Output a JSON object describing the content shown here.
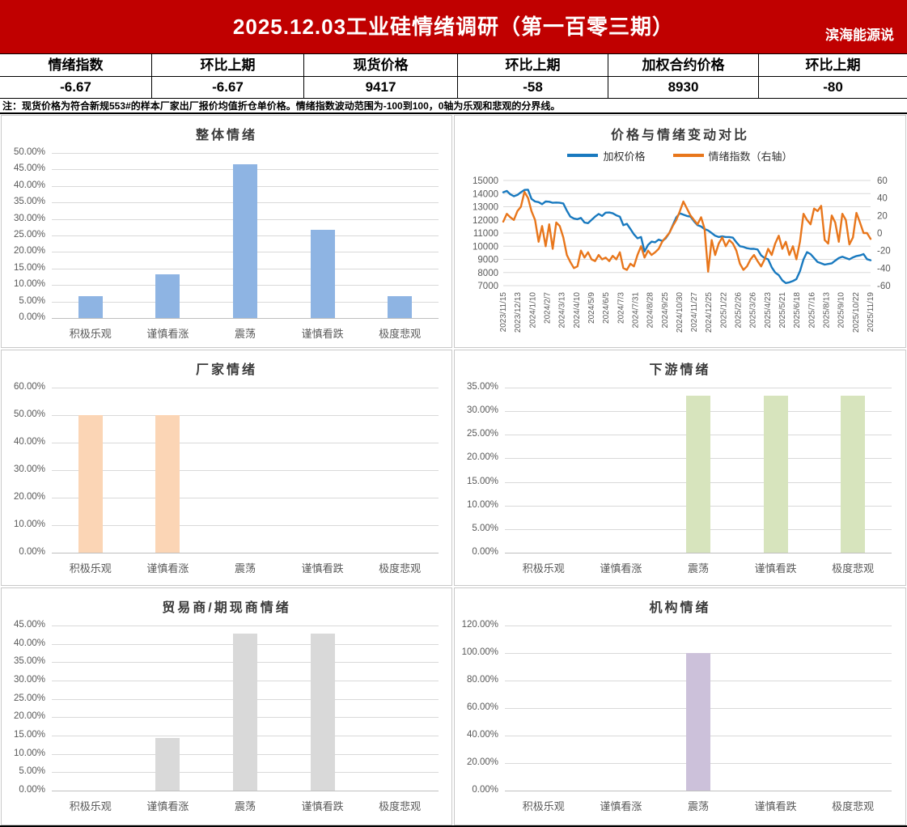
{
  "header": {
    "title": "2025.12.03工业硅情绪调研（第一百零三期）",
    "brand": "滨海能源说",
    "banner_color": "#C00000"
  },
  "summary_table": {
    "columns": [
      "情绪指数",
      "环比上期",
      "现货价格",
      "环比上期",
      "加权合约价格",
      "环比上期"
    ],
    "values": [
      "-6.67",
      "-6.67",
      "9417",
      "-58",
      "8930",
      "-80"
    ]
  },
  "note": "注：现货价格为符合新规553#的样本厂家出厂报价均值折仓单价格。情绪指数波动范围为-100到100，0轴为乐观和悲观的分界线。",
  "chart_data": [
    {
      "key": "overall-sentiment",
      "type": "bar",
      "title": "整体情绪",
      "categories": [
        "积极乐观",
        "谨慎看涨",
        "震荡",
        "谨慎看跌",
        "极度悲观"
      ],
      "values": [
        6.67,
        13.33,
        46.67,
        26.67,
        6.67
      ],
      "ylim": [
        0,
        50
      ],
      "ystep": 5,
      "color": "#8EB4E3",
      "grid": true,
      "xlabel": "",
      "ylabel": ""
    },
    {
      "key": "price-vs-sentiment",
      "type": "line",
      "title": "价格与情绪变动对比",
      "legend": [
        "加权价格",
        "情绪指数（右轴）"
      ],
      "legend_position": "top",
      "left_axis": {
        "min": 7000,
        "max": 15000,
        "step": 1000
      },
      "right_axis": {
        "min": -60,
        "max": 60,
        "step": 20
      },
      "x_ticks": [
        "2023/11/15",
        "2023/12/13",
        "2024/1/10",
        "2024/2/7",
        "2024/3/13",
        "2024/4/10",
        "2024/5/9",
        "2024/6/5",
        "2024/7/3",
        "2024/7/31",
        "2024/8/28",
        "2024/9/25",
        "2024/10/30",
        "2024/11/27",
        "2024/12/25",
        "2025/1/22",
        "2025/2/26",
        "2025/3/26",
        "2025/4/23",
        "2025/5/21",
        "2025/6/18",
        "2025/7/16",
        "2025/8/13",
        "2025/9/10",
        "2025/10/22",
        "2025/11/19"
      ],
      "series": [
        {
          "name": "加权价格",
          "axis": "left",
          "color": "#1879BF",
          "values": [
            14100,
            14200,
            13950,
            13800,
            13900,
            14100,
            14280,
            14300,
            13600,
            13400,
            13350,
            13200,
            13400,
            13380,
            13300,
            13320,
            13300,
            13250,
            12700,
            12250,
            12100,
            12050,
            12150,
            11800,
            11750,
            12000,
            12250,
            12450,
            12300,
            12550,
            12560,
            12500,
            12350,
            12250,
            11600,
            11700,
            11300,
            10900,
            10600,
            10700,
            9600,
            10100,
            10350,
            10300,
            10500,
            10400,
            10600,
            11000,
            11600,
            12200,
            12500,
            12400,
            12300,
            12250,
            11900,
            11600,
            11500,
            11300,
            11200,
            11000,
            10800,
            10700,
            10750,
            10700,
            10700,
            10650,
            10300,
            10000,
            9950,
            9850,
            9800,
            9800,
            9750,
            9300,
            9100,
            9000,
            8400,
            8000,
            7800,
            7400,
            7200,
            7250,
            7350,
            7500,
            8100,
            9000,
            9550,
            9400,
            9100,
            8800,
            8700,
            8600,
            8650,
            8700,
            8900,
            9100,
            9200,
            9100,
            9000,
            9150,
            9250,
            9300,
            9400,
            9010,
            8930
          ]
        },
        {
          "name": "情绪指数（右轴）",
          "axis": "right",
          "color": "#E8761B",
          "values": [
            13,
            22,
            18,
            15,
            25,
            30,
            47,
            40,
            25,
            15,
            -10,
            8,
            -15,
            10,
            -18,
            12,
            8,
            -5,
            -25,
            -33,
            -40,
            -38,
            -20,
            -28,
            -22,
            -30,
            -32,
            -25,
            -30,
            -28,
            -32,
            -26,
            -30,
            -22,
            -40,
            -42,
            -35,
            -38,
            -25,
            -15,
            -28,
            -20,
            -25,
            -22,
            -18,
            -10,
            -5,
            0,
            8,
            15,
            25,
            36,
            28,
            20,
            15,
            10,
            18,
            5,
            -44,
            -8,
            -25,
            -12,
            -5,
            -15,
            -8,
            -12,
            -20,
            -35,
            -42,
            -38,
            -30,
            -25,
            -32,
            -38,
            -30,
            -18,
            -25,
            -12,
            -3,
            -18,
            -10,
            -25,
            -15,
            -30,
            -10,
            22,
            15,
            10,
            28,
            25,
            31,
            -8,
            -12,
            20,
            12,
            -10,
            22,
            15,
            -13,
            -5,
            23,
            12,
            0,
            0,
            -6.67
          ]
        }
      ]
    },
    {
      "key": "producer-sentiment",
      "type": "bar",
      "title": "厂家情绪",
      "categories": [
        "积极乐观",
        "谨慎看涨",
        "震荡",
        "谨慎看跌",
        "极度悲观"
      ],
      "values": [
        50,
        50,
        0,
        0,
        0
      ],
      "ylim": [
        0,
        60
      ],
      "ystep": 10,
      "color": "#FBD5B5",
      "grid": true,
      "xlabel": "",
      "ylabel": ""
    },
    {
      "key": "downstream-sentiment",
      "type": "bar",
      "title": "下游情绪",
      "categories": [
        "积极乐观",
        "谨慎看涨",
        "震荡",
        "谨慎看跌",
        "极度悲观"
      ],
      "values": [
        0,
        0,
        33.33,
        33.33,
        33.33
      ],
      "ylim": [
        0,
        35
      ],
      "ystep": 5,
      "color": "#D7E4BD",
      "grid": true,
      "xlabel": "",
      "ylabel": ""
    },
    {
      "key": "trader-sentiment",
      "type": "bar",
      "title": "贸易商/期现商情绪",
      "categories": [
        "积极乐观",
        "谨慎看涨",
        "震荡",
        "谨慎看跌",
        "极度悲观"
      ],
      "values": [
        0,
        14.29,
        42.86,
        42.86,
        0
      ],
      "ylim": [
        0,
        45
      ],
      "ystep": 5,
      "color": "#D9D9D9",
      "grid": true,
      "xlabel": "",
      "ylabel": ""
    },
    {
      "key": "institution-sentiment",
      "type": "bar",
      "title": "机构情绪",
      "categories": [
        "积极乐观",
        "谨慎看涨",
        "震荡",
        "谨慎看跌",
        "极度悲观"
      ],
      "values": [
        0,
        0,
        100,
        0,
        0
      ],
      "ylim": [
        0,
        120
      ],
      "ystep": 20,
      "color": "#CCC1DA",
      "grid": true,
      "xlabel": "",
      "ylabel": ""
    }
  ]
}
